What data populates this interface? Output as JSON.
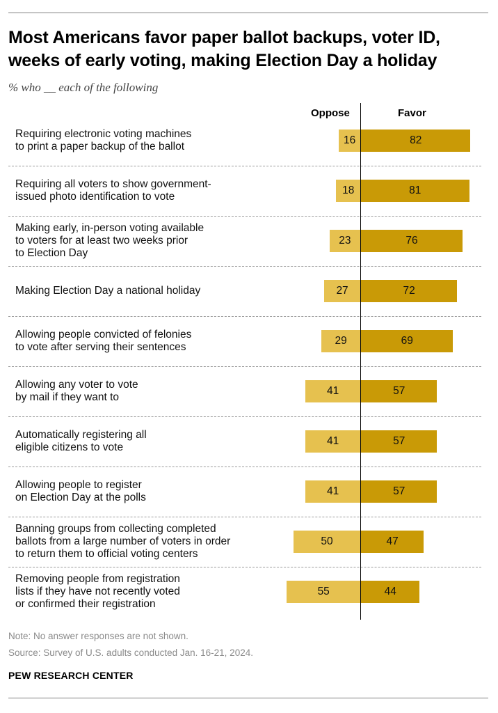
{
  "chart_data": {
    "type": "bar",
    "title": "Most Americans favor paper ballot backups, voter ID, weeks of early voting, making Election Day a holiday",
    "subtitle": "% who __ each of the following",
    "legend": [
      "Oppose",
      "Favor"
    ],
    "categories": [
      "Requiring electronic voting machines to print a paper backup of the ballot",
      "Requiring all voters to show government-issued photo identification to vote",
      "Making early, in-person voting available to voters for at least two weeks prior to Election Day",
      "Making Election Day a national holiday",
      "Allowing people convicted of felonies to vote after serving their sentences",
      "Allowing any voter to vote by mail if they want to",
      "Automatically registering all eligible citizens to vote",
      "Allowing people to register on Election Day at the polls",
      "Banning groups from collecting completed ballots from a large number of voters in order to return them to official voting centers",
      "Removing people from registration lists if they have not recently voted or confirmed their registration"
    ],
    "category_lines": [
      [
        "Requiring electronic voting machines",
        "to print a paper backup of the ballot"
      ],
      [
        "Requiring all voters to show government-",
        "issued photo identification to vote"
      ],
      [
        "Making early, in-person voting available",
        "to voters for at least two weeks prior",
        "to Election Day"
      ],
      [
        "Making Election Day a national holiday"
      ],
      [
        "Allowing people convicted of felonies",
        "to vote after serving their sentences"
      ],
      [
        "Allowing any voter to vote",
        "by mail if they want to"
      ],
      [
        "Automatically registering all",
        "eligible citizens to vote"
      ],
      [
        "Allowing people to register",
        "on Election Day at the polls"
      ],
      [
        "Banning groups from collecting completed",
        "ballots from a large number of voters in order",
        "to return them to official voting centers"
      ],
      [
        "Removing people from registration",
        "lists if they have not recently voted",
        "or confirmed their registration"
      ]
    ],
    "series": [
      {
        "name": "Oppose",
        "values": [
          16,
          18,
          23,
          27,
          29,
          41,
          41,
          41,
          50,
          55
        ]
      },
      {
        "name": "Favor",
        "values": [
          82,
          81,
          76,
          72,
          69,
          57,
          57,
          57,
          47,
          44
        ]
      }
    ],
    "colors": {
      "oppose": "#e6c14f",
      "favor": "#c99a06"
    }
  },
  "footer": {
    "note": "Note: No answer responses are not shown.",
    "source": "Source: Survey of U.S. adults conducted Jan. 16-21, 2024.",
    "brand": "PEW RESEARCH CENTER"
  }
}
